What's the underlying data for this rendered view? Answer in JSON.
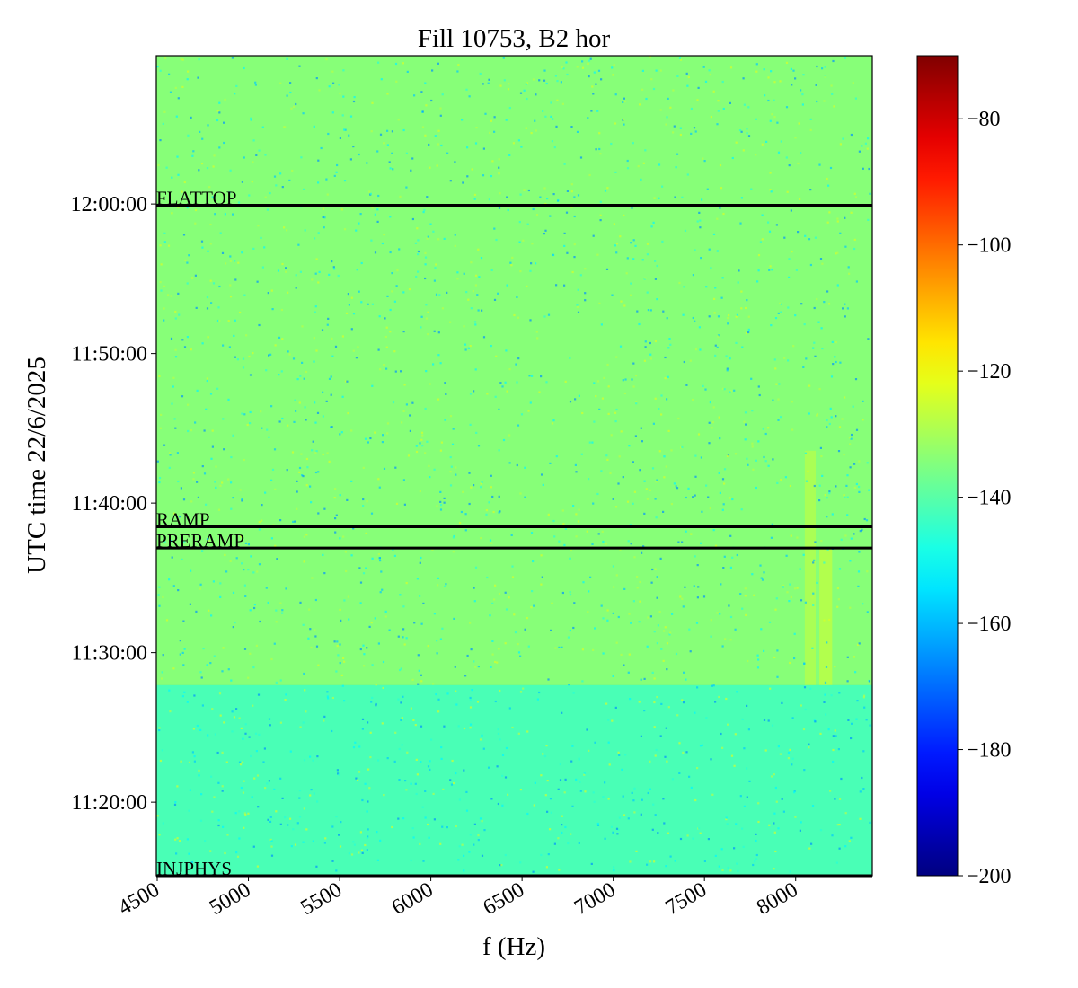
{
  "chart_data": {
    "type": "heatmap",
    "title": "Fill 10753, B2 hor",
    "xlabel": "f (Hz)",
    "ylabel": "UTC time 22/6/2025",
    "xlim": [
      4495,
      8420
    ],
    "ylim": [
      "11:15:05",
      "12:09:55"
    ],
    "x_ticks": [
      4500,
      5000,
      5500,
      6000,
      6500,
      7000,
      7500,
      8000
    ],
    "y_ticks": [
      "11:20:00",
      "11:30:00",
      "11:40:00",
      "11:50:00",
      "12:00:00"
    ],
    "colorbar": {
      "colormap": "jet",
      "vmin": -200,
      "vmax": -70,
      "ticks": [
        -200,
        -180,
        -160,
        -140,
        -120,
        -100,
        -80
      ]
    },
    "regions": [
      {
        "from": "11:15:05",
        "to": "11:27:50",
        "level_dB": -142
      },
      {
        "from": "11:27:50",
        "to": "12:09:55",
        "level_dB": -134
      }
    ],
    "features": [
      {
        "f_from": 8050,
        "f_to": 8110,
        "from": "11:27:50",
        "to": "11:43:30",
        "level_dB": -126
      },
      {
        "f_from": 8130,
        "f_to": 8200,
        "from": "11:27:50",
        "to": "11:37:00",
        "level_dB": -124
      }
    ],
    "events": [
      {
        "label": "INJPHYS",
        "time": "11:15:05"
      },
      {
        "label": "PRERAMP",
        "time": "11:37:00"
      },
      {
        "label": "RAMP",
        "time": "11:38:25"
      },
      {
        "label": "FLATTOP",
        "time": "11:59:55"
      }
    ]
  }
}
